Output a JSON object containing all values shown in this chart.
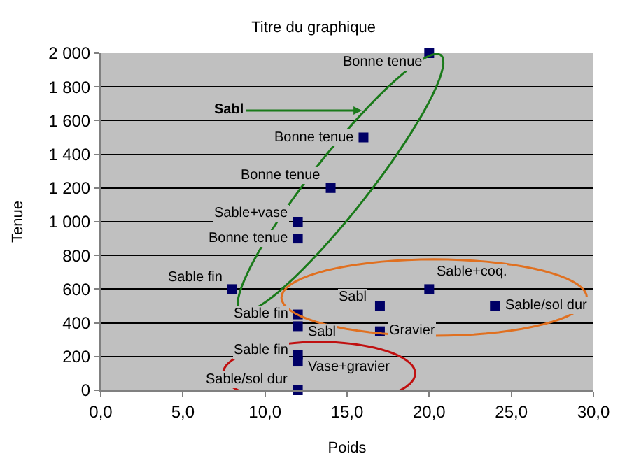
{
  "chart_data": {
    "type": "scatter",
    "title": "Titre du graphique",
    "xlabel": "Poids",
    "ylabel": "Tenue",
    "x": [
      20,
      16,
      14,
      12,
      12,
      8,
      12,
      12,
      12,
      12,
      12,
      17,
      17,
      20,
      24
    ],
    "series": [
      {
        "color": "#000066",
        "values": [
          2000,
          1500,
          1200,
          1000,
          900,
          600,
          450,
          380,
          210,
          170,
          0,
          500,
          350,
          600,
          500
        ]
      }
    ],
    "xlim": [
      0,
      30
    ],
    "xticks": [
      {
        "value": 0,
        "label": "0,0"
      },
      {
        "value": 5,
        "label": "5,0"
      },
      {
        "value": 10,
        "label": "10,0"
      },
      {
        "value": 15,
        "label": "15,0"
      },
      {
        "value": 20,
        "label": "20,0"
      },
      {
        "value": 25,
        "label": "25,0"
      },
      {
        "value": 30,
        "label": "30,0"
      }
    ],
    "ylim": [
      0,
      2000
    ],
    "yticks": [
      0,
      200,
      400,
      600,
      800,
      {
        "value": 1000,
        "label": "1 000"
      },
      {
        "value": 1200,
        "label": "1 200"
      },
      {
        "value": 1400,
        "label": "1 400"
      },
      {
        "value": 1600,
        "label": "1 600"
      },
      {
        "value": 1800,
        "label": "1 800"
      },
      {
        "value": 2000,
        "label": "2 000"
      }
    ],
    "grid": "y",
    "marker": "square",
    "annotations": [
      {
        "text": "Bonne tenue",
        "x": 20,
        "y": 2000
      },
      {
        "text": "Bonne tenue",
        "x": 16,
        "y": 1500
      },
      {
        "text": "Bonne tenue",
        "x": 14,
        "y": 1200
      },
      {
        "text": "Sable+vase",
        "x": 12,
        "y": 1000
      },
      {
        "text": "Bonne tenue",
        "x": 12,
        "y": 900
      },
      {
        "text": "Sable fin",
        "x": 8,
        "y": 600
      },
      {
        "text": "Sable fin",
        "x": 12,
        "y": 450
      },
      {
        "text": "Sabl",
        "x": 12,
        "y": 380
      },
      {
        "text": "Sable fin",
        "x": 12,
        "y": 210
      },
      {
        "text": "Vase+gravier",
        "x": 12,
        "y": 170
      },
      {
        "text": "Sable/sol dur",
        "x": 12,
        "y": 0
      },
      {
        "text": "Sabl",
        "x": 17,
        "y": 500
      },
      {
        "text": "Gravier",
        "x": 17,
        "y": 350
      },
      {
        "text": "Sable+coq.",
        "x": 20,
        "y": 600
      },
      {
        "text": "Sable/sol dur",
        "x": 24,
        "y": 500
      },
      "Sabl"
    ]
  }
}
